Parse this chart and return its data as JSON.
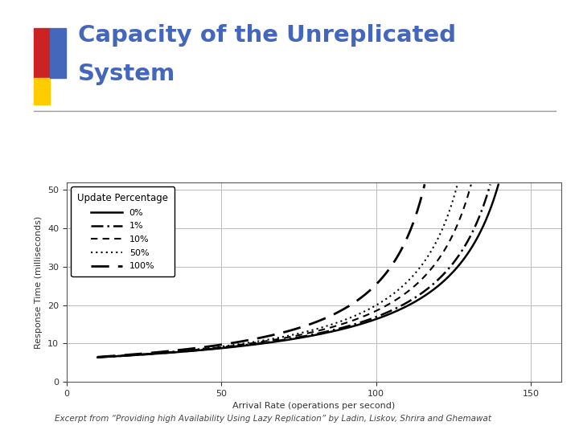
{
  "title_line1": "Capacity of the Unreplicated",
  "title_line2": "System",
  "title_color": "#4466BB",
  "xlabel": "Arrival Rate (operations per second)",
  "ylabel": "Response Time (milliseconds)",
  "xlim": [
    0,
    160
  ],
  "ylim": [
    0,
    52
  ],
  "xticks": [
    0,
    50,
    100,
    150
  ],
  "yticks": [
    0,
    10,
    20,
    30,
    40,
    50
  ],
  "caption": "Excerpt from “Providing high Availability Using Lazy Replication” by Ladin, Liskov, Shrira and Ghemawat",
  "legend_title": "Update Percentage",
  "labels": [
    "0%",
    "1%",
    "10%",
    "50%",
    "100%"
  ],
  "capacities": [
    158,
    155,
    148,
    143,
    131
  ],
  "base_service_ms": 6.0,
  "linewidths": [
    1.8,
    1.8,
    1.5,
    1.5,
    2.0
  ],
  "dashes": [
    null,
    [
      6,
      2,
      1,
      2
    ],
    [
      4,
      3
    ],
    [
      1,
      2
    ],
    [
      8,
      4
    ]
  ],
  "background_color": "#ffffff",
  "grid_color": "#bbbbbb",
  "dec_red": "#CC2222",
  "dec_yellow": "#FFCC00",
  "dec_blue": "#4466BB",
  "separator_color": "#999999"
}
